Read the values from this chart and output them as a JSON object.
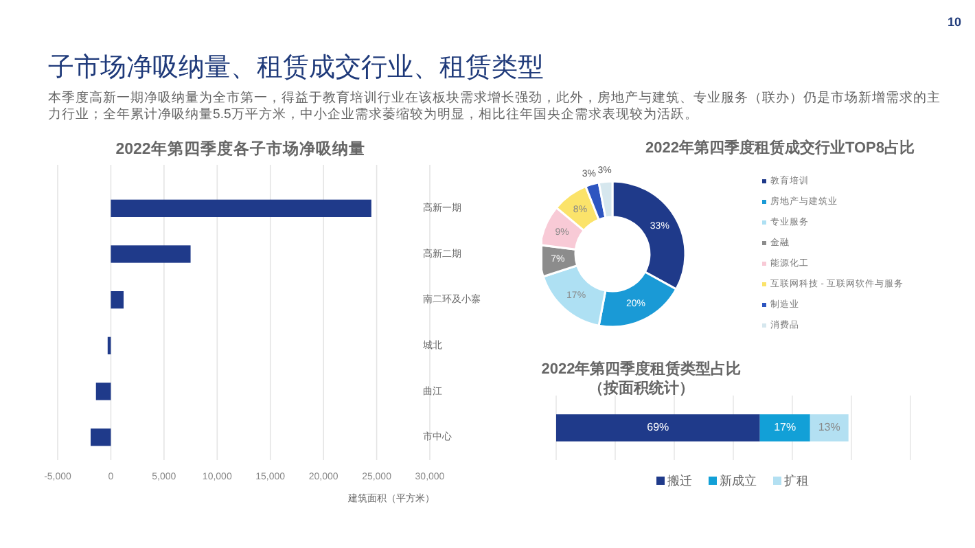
{
  "chart_data": [
    {
      "type": "other",
      "title": "子市场净吸纳量、租赁成交行业、租赁类型",
      "annotations": [
        "本季度高新一期净吸纳量为全市第一，得益于教育培训行业在该板块需求增长强劲，此外，房地产与建筑、专业服务（联办）仍是市场新增需求的主力行业；全年累计净吸纳量5.5万平方米，中小企业需求萎缩较为明显，相比往年国央企需求表现较为活跃。",
        "10"
      ]
    },
    {
      "type": "bar",
      "orientation": "horizontal",
      "title": "2022年第四季度各子市场净吸纳量",
      "xlabel": "建筑面积（平方米）",
      "categories": [
        "高新一期",
        "高新二期",
        "南二环及小寨",
        "城北",
        "曲江",
        "市中心"
      ],
      "values": [
        24500,
        7500,
        1200,
        -300,
        -1400,
        -1900
      ],
      "color": "#1f3a8a",
      "xlim": [
        -5000,
        30000
      ],
      "xticks": [
        {
          "value": -5000,
          "label": "-5,000"
        },
        0,
        {
          "value": 5000,
          "label": "5,000"
        },
        {
          "value": 10000,
          "label": "10,000"
        },
        {
          "value": 15000,
          "label": "15,000"
        },
        {
          "value": 20000,
          "label": "20,000"
        },
        {
          "value": 25000,
          "label": "25,000"
        },
        {
          "value": 30000,
          "label": "30,000"
        }
      ],
      "grid": "x"
    },
    {
      "type": "donut",
      "title": "2022年第四季度租赁成交行业TOP8占比",
      "categories": [
        "教育培训",
        "房地产与建筑业",
        "专业服务",
        "金融",
        "能源化工",
        "互联网科技 - 互联网软件与服务",
        "制造业",
        "消费品"
      ],
      "values": [
        33,
        20,
        17,
        7,
        9,
        8,
        3,
        3
      ],
      "value_labels": [
        "33%",
        "20%",
        "17%",
        "7%",
        "9%",
        "8%",
        "3%",
        "3%"
      ],
      "colors": [
        "#1f3a8a",
        "#1a9ad6",
        "#aee0f3",
        "#8c8c8c",
        "#f8cad6",
        "#fbe36a",
        "#2d55c0",
        "#d6e7ee"
      ],
      "legend": "right"
    },
    {
      "type": "bar",
      "orientation": "horizontal",
      "stacked": true,
      "title": "2022年第四季度租赁类型占比（按面积统计）",
      "categories": [
        null
      ],
      "series": [
        {
          "name": "搬迁",
          "color": "#1f3a8a",
          "values": [
            69
          ],
          "value_labels": [
            "69%"
          ]
        },
        {
          "name": "新成立",
          "color": "#12a0d7",
          "values": [
            17
          ],
          "value_labels": [
            "17%"
          ]
        },
        {
          "name": "扩租",
          "color": "#b3e0f2",
          "values": [
            13
          ],
          "value_labels": [
            "13%"
          ]
        }
      ],
      "xlim": [
        0,
        120
      ],
      "xticks": [
        {
          "value": 0,
          "label": null
        },
        {
          "value": 20,
          "label": null
        },
        {
          "value": 40,
          "label": null
        },
        {
          "value": 60,
          "label": null
        },
        {
          "value": 80,
          "label": null
        },
        {
          "value": 100,
          "label": null
        },
        {
          "value": 120,
          "label": null
        }
      ],
      "grid": "x",
      "legend": "bottom"
    }
  ]
}
